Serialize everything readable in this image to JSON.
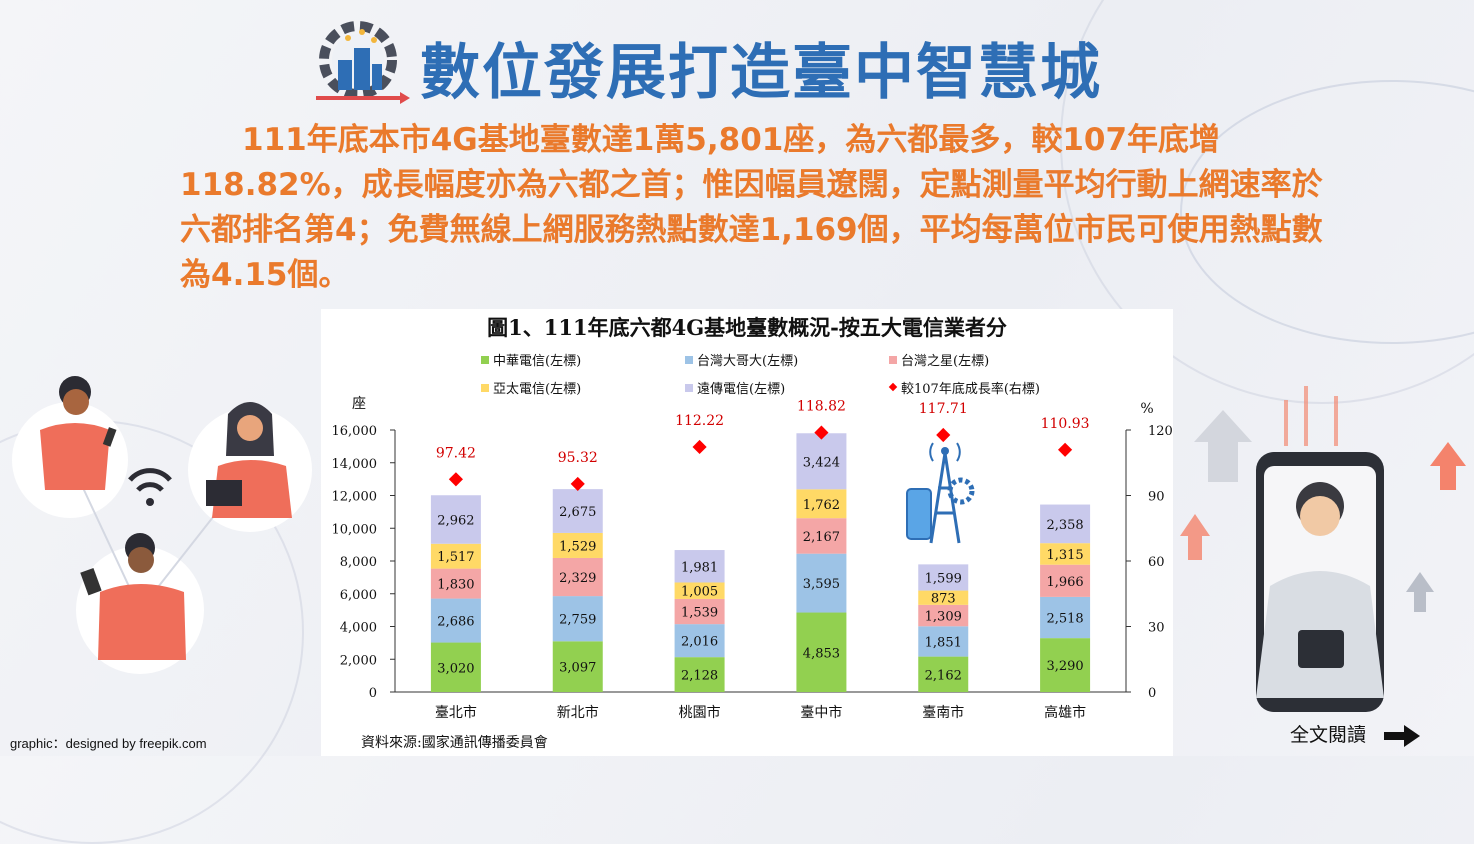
{
  "header": {
    "title": "數位發展打造臺中智慧城",
    "summary": "　　111年底本市4G基地臺數達1萬5,801座，為六都最多，較107年底增118.82%，成長幅度亦為六都之首；惟因幅員遼闊，定點測量平均行動上網速率於六都排名第4；免費無線上網服務熱點數達1,169個，平均每萬位市民可使用熱點數為4.15個。"
  },
  "chart_data": {
    "type": "bar",
    "stacked": true,
    "title": "圖1、111年底六都4G基地臺數概況-按五大電信業者分",
    "y_unit_left": "座",
    "y_unit_right": "%",
    "ylim": [
      0,
      16000
    ],
    "yticks": [
      "0",
      "2,000",
      "4,000",
      "6,000",
      "8,000",
      "10,000",
      "12,000",
      "14,000",
      "16,000"
    ],
    "y2lim": [
      0,
      120
    ],
    "y2ticks": [
      "0",
      "30",
      "60",
      "90",
      "120"
    ],
    "categories": [
      "臺北市",
      "新北市",
      "桃園市",
      "臺中市",
      "臺南市",
      "高雄市"
    ],
    "series": [
      {
        "name": "中華電信(左標)",
        "color": "#92d050",
        "values": [
          3020,
          3097,
          2128,
          4853,
          2162,
          3290
        ],
        "labels": [
          "3,020",
          "3,097",
          "2,128",
          "4,853",
          "2,162",
          "3,290"
        ]
      },
      {
        "name": "台灣大哥大(左標)",
        "color": "#9dc3e6",
        "values": [
          2686,
          2759,
          2016,
          3595,
          1851,
          2518
        ],
        "labels": [
          "2,686",
          "2,759",
          "2,016",
          "3,595",
          "1,851",
          "2,518"
        ]
      },
      {
        "name": "台灣之星(左標)",
        "color": "#f4a6a6",
        "values": [
          1830,
          2329,
          1539,
          2167,
          1309,
          1966
        ],
        "labels": [
          "1,830",
          "2,329",
          "1,539",
          "2,167",
          "1,309",
          "1,966"
        ]
      },
      {
        "name": "亞太電信(左標)",
        "color": "#ffd966",
        "values": [
          1517,
          1529,
          1005,
          1762,
          873,
          1315
        ],
        "labels": [
          "1,517",
          "1,529",
          "1,005",
          "1,762",
          "873",
          "1,315"
        ]
      },
      {
        "name": "遠傳電信(左標)",
        "color": "#c9c9ec",
        "values": [
          2962,
          2675,
          1981,
          3424,
          1599,
          2358
        ],
        "labels": [
          "2,962",
          "2,675",
          "1,981",
          "3,424",
          "1,599",
          "2,358"
        ]
      }
    ],
    "growth": {
      "name": "較107年底成長率(右標)",
      "color": "#ff0000",
      "values": [
        97.42,
        95.32,
        112.22,
        118.82,
        117.71,
        110.93
      ],
      "labels": [
        "97.42",
        "95.32",
        "112.22",
        "118.82",
        "117.71",
        "110.93"
      ]
    },
    "source": "資料來源:國家通訊傳播委員會"
  },
  "footer": {
    "credit": "graphic：designed by freepik.com",
    "read_more": "全文閱讀"
  },
  "icons": {
    "logo": "gear-city-icon",
    "read_more_arrow": "arrow-right-icon",
    "tower": "cell-tower-icon"
  }
}
